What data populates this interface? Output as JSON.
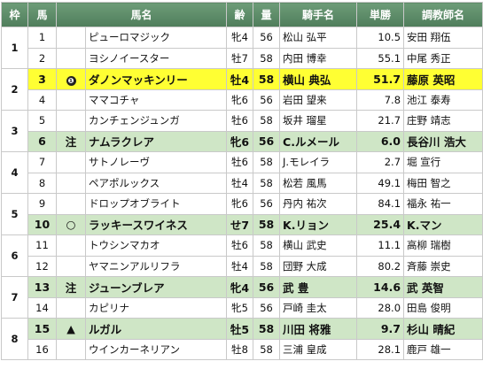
{
  "headers": [
    "枠",
    "馬",
    "",
    "馬名",
    "齢",
    "量",
    "騎手名",
    "単勝",
    "調教師名"
  ],
  "frames": [
    {
      "waku": "1",
      "rows": [
        {
          "uma": "1",
          "mark": "",
          "name": "ピューロマジック",
          "sex": "牝4",
          "wt": "56",
          "jockey": "松山 弘平",
          "odds": "10.5",
          "trainer": "安田 翔伍",
          "hl": ""
        },
        {
          "uma": "2",
          "mark": "",
          "name": "ヨシノイースター",
          "sex": "牡7",
          "wt": "58",
          "jockey": "内田 博幸",
          "odds": "55.1",
          "trainer": "中尾 秀正",
          "hl": ""
        }
      ]
    },
    {
      "waku": "2",
      "rows": [
        {
          "uma": "3",
          "mark": "❶",
          "name": "ダノンマッキンリー",
          "sex": "牡4",
          "wt": "58",
          "jockey": "横山 典弘",
          "odds": "51.7",
          "trainer": "藤原 英昭",
          "hl": "yellow"
        },
        {
          "uma": "4",
          "mark": "",
          "name": "ママコチャ",
          "sex": "牝6",
          "wt": "56",
          "jockey": "岩田 望来",
          "odds": "7.8",
          "trainer": "池江 泰寿",
          "hl": ""
        }
      ]
    },
    {
      "waku": "3",
      "rows": [
        {
          "uma": "5",
          "mark": "",
          "name": "カンチェンジュンガ",
          "sex": "牡6",
          "wt": "58",
          "jockey": "坂井 瑠星",
          "odds": "21.7",
          "trainer": "庄野 靖志",
          "hl": ""
        },
        {
          "uma": "6",
          "mark": "注",
          "name": "ナムラクレア",
          "sex": "牝6",
          "wt": "56",
          "jockey": "C.ルメール",
          "odds": "6.0",
          "trainer": "長谷川 浩大",
          "hl": "green"
        }
      ]
    },
    {
      "waku": "4",
      "rows": [
        {
          "uma": "7",
          "mark": "",
          "name": "サトノレーヴ",
          "sex": "牡6",
          "wt": "58",
          "jockey": "J.モレイラ",
          "odds": "2.7",
          "trainer": "堀 宣行",
          "hl": ""
        },
        {
          "uma": "8",
          "mark": "",
          "name": "ペアポルックス",
          "sex": "牡4",
          "wt": "58",
          "jockey": "松若 風馬",
          "odds": "49.1",
          "trainer": "梅田 智之",
          "hl": ""
        }
      ]
    },
    {
      "waku": "5",
      "rows": [
        {
          "uma": "9",
          "mark": "",
          "name": "ドロップオブライト",
          "sex": "牝6",
          "wt": "56",
          "jockey": "丹内 祐次",
          "odds": "84.1",
          "trainer": "福永 祐一",
          "hl": ""
        },
        {
          "uma": "10",
          "mark": "○",
          "name": "ラッキースワイネス",
          "sex": "せ7",
          "wt": "58",
          "jockey": "K.リョン",
          "odds": "25.4",
          "trainer": "K.マン",
          "hl": "green"
        }
      ]
    },
    {
      "waku": "6",
      "rows": [
        {
          "uma": "11",
          "mark": "",
          "name": "トウシンマカオ",
          "sex": "牡6",
          "wt": "58",
          "jockey": "横山 武史",
          "odds": "11.1",
          "trainer": "高柳 瑞樹",
          "hl": ""
        },
        {
          "uma": "12",
          "mark": "",
          "name": "ヤマニンアルリフラ",
          "sex": "牡4",
          "wt": "58",
          "jockey": "団野 大成",
          "odds": "80.2",
          "trainer": "斉藤 崇史",
          "hl": ""
        }
      ]
    },
    {
      "waku": "7",
      "rows": [
        {
          "uma": "13",
          "mark": "注",
          "name": "ジューンブレア",
          "sex": "牝4",
          "wt": "56",
          "jockey": "武 豊",
          "odds": "14.6",
          "trainer": "武 英智",
          "hl": "green"
        },
        {
          "uma": "14",
          "mark": "",
          "name": "カピリナ",
          "sex": "牝5",
          "wt": "56",
          "jockey": "戸崎 圭太",
          "odds": "28.0",
          "trainer": "田島 俊明",
          "hl": ""
        }
      ]
    },
    {
      "waku": "8",
      "rows": [
        {
          "uma": "15",
          "mark": "▲",
          "name": "ルガル",
          "sex": "牡5",
          "wt": "58",
          "jockey": "川田 将雅",
          "odds": "9.7",
          "trainer": "杉山 晴紀",
          "hl": "green"
        },
        {
          "uma": "16",
          "mark": "",
          "name": "ウインカーネリアン",
          "sex": "牡8",
          "wt": "58",
          "jockey": "三浦 皇成",
          "odds": "28.1",
          "trainer": "鹿戸 雄一",
          "hl": ""
        }
      ]
    }
  ]
}
